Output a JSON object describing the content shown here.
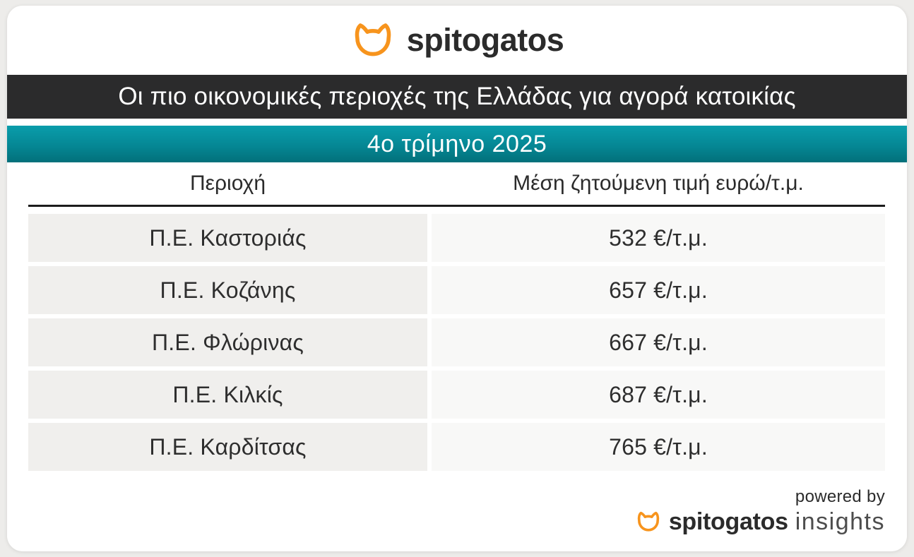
{
  "brand": {
    "logo_text": "spitogatos",
    "cat_icon": "cat-head-outline",
    "accent_orange": "#f7941d",
    "wordmark_color": "#2b2b2b"
  },
  "header": {
    "title": "Οι πιο οικονομικές περιοχές της Ελλάδας για αγορά κατοικίας",
    "subtitle": "4ο τρίμηνο 2025"
  },
  "table": {
    "columns": [
      "Περιοχή",
      "Μέση ζητούμενη τιμή ευρώ/τ.μ."
    ],
    "rows": [
      {
        "region": "Π.Ε. Καστοριάς",
        "price": "532 €/τ.μ."
      },
      {
        "region": "Π.Ε. Κοζάνης",
        "price": "657 €/τ.μ."
      },
      {
        "region": "Π.Ε. Φλώρινας",
        "price": "667 €/τ.μ."
      },
      {
        "region": "Π.Ε. Κιλκίς",
        "price": "687 €/τ.μ."
      },
      {
        "region": "Π.Ε. Καρδίτσας",
        "price": "765 €/τ.μ."
      }
    ]
  },
  "footer": {
    "powered_by": "powered by",
    "brand": "spitogatos",
    "suffix": "insights"
  },
  "colors": {
    "page_background": "#edecea",
    "card_background": "#ffffff",
    "title_bar": "#2b2b2c",
    "teal_gradient_top": "#0a9dab",
    "teal_gradient_bottom": "#02707a",
    "row_left_background": "#f0efed",
    "row_right_background": "#f8f8f7",
    "divider": "#1c1c1c"
  },
  "chart_data": {
    "type": "table",
    "title": "Οι πιο οικονομικές περιοχές της Ελλάδας για αγορά κατοικίας",
    "subtitle": "4ο τρίμηνο 2025",
    "columns": [
      "Περιοχή",
      "Μέση ζητούμενη τιμή ευρώ/τ.μ."
    ],
    "categories": [
      "Π.Ε. Καστοριάς",
      "Π.Ε. Κοζάνης",
      "Π.Ε. Φλώρινας",
      "Π.Ε. Κιλκίς",
      "Π.Ε. Καρδίτσας"
    ],
    "values": [
      532,
      657,
      667,
      687,
      765
    ],
    "unit": "€/τ.μ."
  }
}
